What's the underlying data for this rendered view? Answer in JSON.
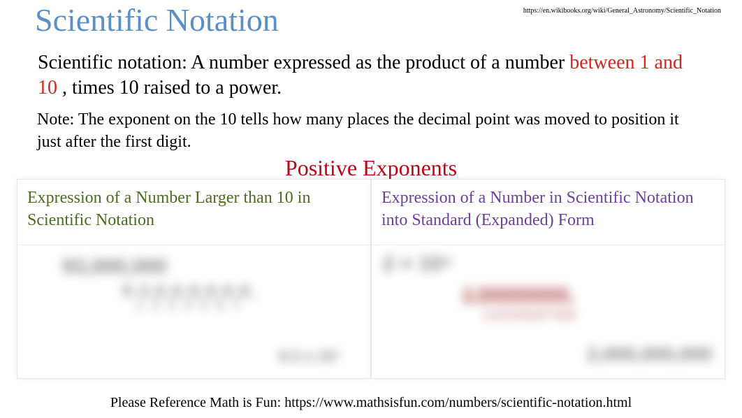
{
  "title": {
    "text": "Scientific Notation",
    "color": "#5b8fc7"
  },
  "top_url": "https://en.wikibooks.org/wiki/General_Astronomy/Scientific_Notation",
  "definition": {
    "lead": "Scientific notation:  A number expressed as the product of a number ",
    "highlight": "between 1 and 10 ",
    "highlight_color": "#d8251e",
    "tail": ", times 10 raised to a power."
  },
  "note": "Note: The exponent on the 10 tells how many places the decimal point was moved to position it just after the first digit.",
  "section": {
    "text": "Positive Exponents",
    "color": "#c00418"
  },
  "panels": {
    "left": {
      "header": "Expression of a Number Larger than 10 in Scientific Notation",
      "header_color": "#4b6b1e",
      "blur": {
        "a": "93,000,000",
        "b": "9.3,0,0,0,0,0,0,",
        "c": "1 2 3 4 5 6 7",
        "d": "9.3 x 10⁷"
      }
    },
    "right": {
      "header": "Expression of a Number in Scientific Notation into Standard (Expanded) Form",
      "header_color": "#6b3fa0",
      "blur": {
        "a": "2 × 10⁹",
        "b": "2.000000000.",
        "c": "1 2 3 4 5 6 7 8 9",
        "d": "2,000,000,000"
      }
    }
  },
  "footer": "Please Reference Math is Fun: https://www.mathsisfun.com/numbers/scientific-notation.html"
}
